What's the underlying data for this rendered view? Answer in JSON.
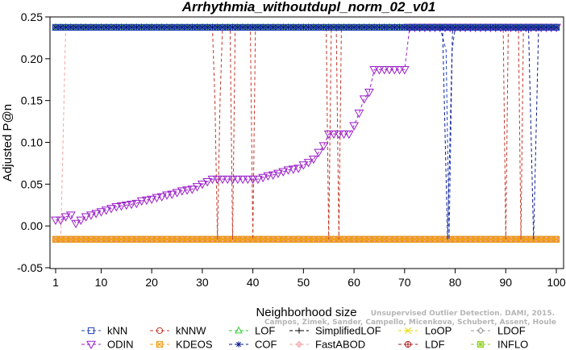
{
  "chart_data": {
    "type": "line",
    "title": "Arrhythmia_withoutdupl_norm_02_v01",
    "xlabel": "Neighborhood size",
    "ylabel": "Adjusted P@n",
    "xlim": [
      1,
      100
    ],
    "ylim": [
      -0.05,
      0.25
    ],
    "xticks": [
      1,
      10,
      20,
      30,
      40,
      50,
      60,
      70,
      80,
      90,
      100
    ],
    "yticks": [
      -0.05,
      0.0,
      0.05,
      0.1,
      0.15,
      0.2,
      0.25
    ],
    "grid": false,
    "legend_position": "bottom",
    "watermark": [
      "Campos, Zimek, Sander, Campello, Micenkova, Schubert, Assent, Houle",
      "Unsupervised Outlier Detection. DAMI, 2015."
    ],
    "series": [
      {
        "name": "kNN",
        "color": "#1f3fbf",
        "marker": "square",
        "dashed": true,
        "const": 0.2375,
        "dips": [
          [
            77,
            0.2375
          ],
          [
            78.2,
            0.21
          ],
          [
            78.8,
            -0.016
          ],
          [
            79.4,
            0.21
          ],
          [
            80,
            0.2375
          ]
        ]
      },
      {
        "name": "kNNW",
        "color": "#c0392b",
        "marker": "circle",
        "dashed": true,
        "const": 0.2375,
        "dips": [
          [
            32,
            0.2375
          ],
          [
            32.5,
            0.15
          ],
          [
            33,
            -0.016
          ],
          [
            33.5,
            0.15
          ],
          [
            34,
            0.2375
          ],
          [
            35.5,
            0.2375
          ],
          [
            36,
            -0.016
          ],
          [
            36.5,
            0.2375
          ],
          [
            39.5,
            0.2375
          ],
          [
            40,
            -0.016
          ],
          [
            40.5,
            0.2375
          ],
          [
            54.5,
            0.2375
          ],
          [
            55,
            -0.016
          ],
          [
            55.5,
            0.2375
          ],
          [
            56.5,
            0.2375
          ],
          [
            57,
            -0.016
          ],
          [
            57.5,
            0.2375
          ],
          [
            89.5,
            0.2375
          ],
          [
            90,
            -0.016
          ],
          [
            90.5,
            0.2375
          ],
          [
            92.5,
            0.2375
          ],
          [
            93,
            -0.016
          ],
          [
            93.5,
            0.2375
          ]
        ]
      },
      {
        "name": "LOF",
        "color": "#2ecc2e",
        "marker": "triangle-up",
        "dashed": true,
        "const": 0.2375
      },
      {
        "name": "SimplifiedLOF",
        "color": "#000000",
        "marker": "plus",
        "dashed": true,
        "const": 0.2375
      },
      {
        "name": "LoOP",
        "color": "#e6d800",
        "marker": "x",
        "dashed": true,
        "const": -0.016
      },
      {
        "name": "LDOF",
        "color": "#9a9a9a",
        "marker": "diamond",
        "dashed": true,
        "const": -0.016
      },
      {
        "name": "ODIN",
        "color": "#9b1fc9",
        "marker": "triangle-down",
        "dashed": true,
        "x": [
          1,
          2,
          3,
          4,
          5,
          6,
          7,
          8,
          9,
          10,
          11,
          12,
          13,
          14,
          15,
          16,
          17,
          18,
          19,
          20,
          21,
          22,
          23,
          24,
          25,
          26,
          27,
          28,
          29,
          30,
          31,
          32,
          33,
          34,
          35,
          36,
          37,
          38,
          39,
          40,
          41,
          42,
          43,
          44,
          45,
          46,
          47,
          48,
          49,
          50,
          51,
          52,
          53,
          54,
          55,
          56,
          57,
          58,
          59,
          60,
          61,
          62,
          63,
          64,
          65,
          66,
          67,
          68,
          69,
          70,
          71
        ],
        "y": [
          0.007,
          0.007,
          0.011,
          0.013,
          0.003,
          0.007,
          0.011,
          0.013,
          0.015,
          0.017,
          0.019,
          0.021,
          0.023,
          0.024,
          0.025,
          0.026,
          0.027,
          0.03,
          0.031,
          0.032,
          0.034,
          0.035,
          0.037,
          0.038,
          0.04,
          0.042,
          0.043,
          0.044,
          0.047,
          0.05,
          0.053,
          0.056,
          0.056,
          0.056,
          0.056,
          0.056,
          0.056,
          0.056,
          0.056,
          0.056,
          0.056,
          0.058,
          0.06,
          0.061,
          0.063,
          0.065,
          0.067,
          0.068,
          0.069,
          0.073,
          0.076,
          0.08,
          0.088,
          0.096,
          0.11,
          0.11,
          0.11,
          0.11,
          0.11,
          0.12,
          0.135,
          0.152,
          0.16,
          0.187,
          0.187,
          0.187,
          0.187,
          0.187,
          0.187,
          0.187,
          0.2375
        ],
        "tail_const": 0.2375
      },
      {
        "name": "KDEOS",
        "color": "#f39c12",
        "marker": "square-x",
        "dashed": true,
        "const": -0.016
      },
      {
        "name": "COF",
        "color": "#0a1a8c",
        "marker": "asterisk",
        "dashed": true,
        "const": 0.2375,
        "dips": [
          [
            77.5,
            0.2375
          ],
          [
            78.5,
            -0.016
          ],
          [
            79.5,
            0.2375
          ],
          [
            94.5,
            0.2375
          ],
          [
            95.5,
            -0.016
          ],
          [
            96.5,
            0.2375
          ]
        ]
      },
      {
        "name": "FastABOD",
        "color": "#f4a6a6",
        "marker": "diamond-plus",
        "dashed": true,
        "const": -0.016,
        "dips": [
          [
            2,
            -0.016
          ],
          [
            3,
            0.2375
          ]
        ]
      },
      {
        "name": "LDF",
        "color": "#a61c1c",
        "marker": "circle-plus",
        "dashed": true,
        "const": -0.016
      },
      {
        "name": "INFLO",
        "color": "#8ed11f",
        "marker": "square-asterisk",
        "dashed": true,
        "const": -0.016
      }
    ]
  }
}
